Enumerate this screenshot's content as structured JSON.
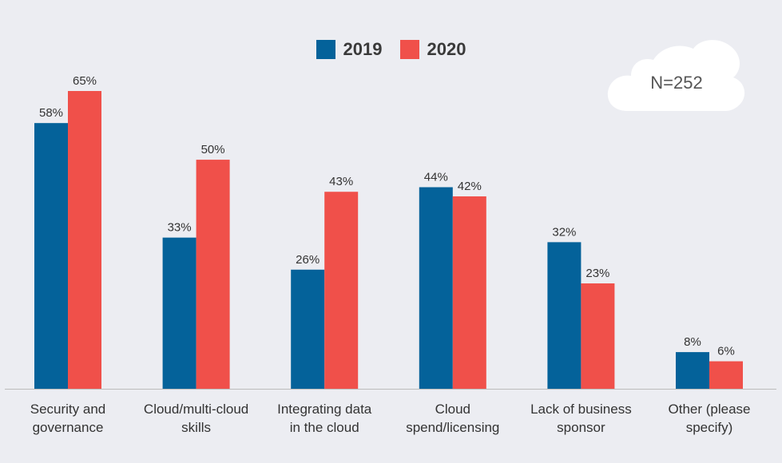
{
  "chart_data": {
    "type": "bar",
    "categories": [
      [
        "Security and",
        "governance"
      ],
      [
        "Cloud/multi-cloud",
        "skills"
      ],
      [
        "Integrating data",
        "in the cloud"
      ],
      [
        "Cloud",
        "spend/licensing"
      ],
      [
        "Lack of business",
        "sponsor"
      ],
      [
        "Other (please",
        "specify)"
      ]
    ],
    "series": [
      {
        "name": "2019",
        "color": "#04629a",
        "values": [
          58,
          33,
          26,
          44,
          32,
          8
        ]
      },
      {
        "name": "2020",
        "color": "#f0504a",
        "values": [
          65,
          50,
          43,
          42,
          23,
          6
        ]
      }
    ],
    "value_suffix": "%",
    "ylim": [
      0,
      65
    ],
    "grid": false,
    "legend_position": "top-center"
  },
  "badge": {
    "text": "N=252"
  }
}
